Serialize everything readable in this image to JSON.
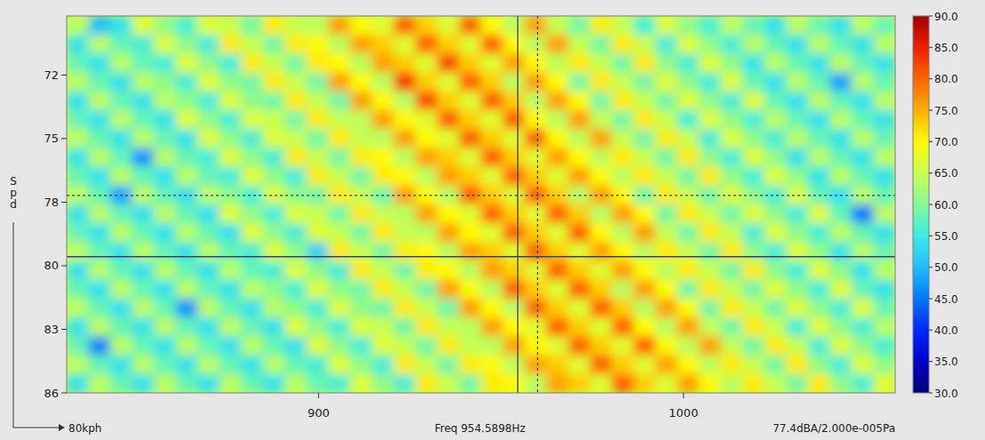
{
  "chart_data": {
    "type": "heatmap",
    "y_label": "Spd",
    "xlim": [
      831,
      1058
    ],
    "xticks": [
      900,
      1000
    ],
    "ylim": [
      69.4,
      86
    ],
    "yticks": [
      72,
      {
        "value": 74.8,
        "label": "75"
      },
      {
        "value": 77.6,
        "label": "78"
      },
      {
        "value": 80.4,
        "label": "80"
      },
      {
        "value": 83.2,
        "label": "83"
      },
      86
    ],
    "grid": false,
    "cells": [
      [
        64,
        50,
        54,
        67,
        61,
        56,
        67,
        65,
        59,
        71,
        65,
        64,
        76,
        70,
        67,
        80,
        73,
        67,
        80,
        70,
        64,
        76,
        65,
        59,
        71,
        65,
        56,
        67,
        61,
        56,
        64,
        58,
        54,
        64,
        58,
        54,
        64,
        58
      ],
      [
        54,
        64,
        58,
        56,
        67,
        61,
        56,
        71,
        65,
        59,
        71,
        70,
        64,
        76,
        73,
        67,
        80,
        73,
        67,
        80,
        70,
        64,
        76,
        65,
        59,
        71,
        65,
        56,
        67,
        61,
        56,
        64,
        58,
        54,
        64,
        58,
        54,
        64
      ],
      [
        58,
        54,
        64,
        58,
        56,
        67,
        61,
        56,
        71,
        65,
        59,
        71,
        70,
        64,
        76,
        73,
        67,
        82,
        73,
        67,
        76,
        70,
        64,
        71,
        65,
        59,
        71,
        61,
        56,
        67,
        61,
        54,
        64,
        58,
        54,
        64,
        58,
        54
      ],
      [
        64,
        58,
        54,
        64,
        61,
        56,
        67,
        61,
        59,
        71,
        65,
        59,
        76,
        70,
        64,
        83,
        73,
        67,
        80,
        73,
        64,
        76,
        70,
        59,
        71,
        65,
        59,
        67,
        61,
        56,
        67,
        58,
        54,
        64,
        58,
        48,
        64,
        58
      ],
      [
        54,
        64,
        58,
        54,
        64,
        61,
        56,
        67,
        61,
        59,
        71,
        65,
        59,
        76,
        70,
        64,
        82,
        73,
        67,
        80,
        73,
        64,
        76,
        70,
        59,
        71,
        65,
        59,
        67,
        61,
        56,
        67,
        58,
        54,
        64,
        58,
        54,
        64
      ],
      [
        58,
        54,
        64,
        58,
        54,
        67,
        61,
        56,
        67,
        65,
        59,
        71,
        65,
        64,
        76,
        70,
        67,
        80,
        73,
        67,
        80,
        70,
        64,
        76,
        65,
        59,
        71,
        65,
        56,
        67,
        61,
        56,
        64,
        58,
        54,
        64,
        58,
        54
      ],
      [
        64,
        58,
        54,
        64,
        58,
        54,
        67,
        61,
        56,
        67,
        65,
        59,
        71,
        65,
        64,
        76,
        70,
        67,
        80,
        73,
        67,
        80,
        70,
        64,
        76,
        65,
        59,
        71,
        65,
        56,
        67,
        61,
        56,
        64,
        58,
        54,
        64,
        58
      ],
      [
        54,
        64,
        58,
        47,
        64,
        58,
        56,
        67,
        61,
        56,
        71,
        65,
        59,
        71,
        70,
        64,
        76,
        73,
        67,
        80,
        73,
        67,
        76,
        70,
        64,
        71,
        65,
        59,
        71,
        61,
        56,
        67,
        61,
        54,
        64,
        58,
        54,
        64
      ],
      [
        58,
        54,
        64,
        58,
        54,
        64,
        58,
        56,
        67,
        61,
        56,
        71,
        65,
        59,
        71,
        70,
        64,
        76,
        73,
        67,
        80,
        73,
        67,
        76,
        70,
        64,
        71,
        65,
        59,
        71,
        61,
        56,
        67,
        61,
        54,
        64,
        58,
        54
      ],
      [
        64,
        58,
        48,
        64,
        58,
        54,
        64,
        61,
        56,
        67,
        61,
        59,
        71,
        65,
        59,
        76,
        70,
        64,
        80,
        73,
        67,
        80,
        73,
        64,
        76,
        70,
        59,
        71,
        65,
        59,
        67,
        61,
        56,
        67,
        58,
        54,
        64,
        58
      ],
      [
        54,
        64,
        58,
        54,
        64,
        58,
        54,
        67,
        61,
        56,
        67,
        65,
        59,
        71,
        65,
        64,
        76,
        70,
        67,
        80,
        73,
        67,
        80,
        73,
        64,
        76,
        70,
        59,
        71,
        65,
        59,
        67,
        61,
        56,
        67,
        58,
        45,
        64
      ],
      [
        58,
        54,
        64,
        58,
        54,
        64,
        58,
        54,
        67,
        61,
        56,
        67,
        65,
        59,
        71,
        65,
        64,
        76,
        70,
        67,
        80,
        73,
        67,
        80,
        70,
        64,
        76,
        65,
        59,
        71,
        65,
        56,
        67,
        61,
        56,
        64,
        58,
        54
      ],
      [
        64,
        58,
        54,
        64,
        58,
        54,
        64,
        58,
        56,
        67,
        61,
        52,
        71,
        65,
        59,
        71,
        70,
        64,
        76,
        73,
        67,
        80,
        73,
        67,
        76,
        70,
        64,
        71,
        65,
        59,
        71,
        61,
        56,
        67,
        61,
        54,
        64,
        58
      ],
      [
        54,
        64,
        58,
        54,
        64,
        58,
        54,
        64,
        58,
        56,
        67,
        61,
        56,
        71,
        65,
        59,
        71,
        70,
        64,
        76,
        73,
        67,
        80,
        73,
        67,
        76,
        70,
        64,
        71,
        65,
        59,
        71,
        61,
        56,
        67,
        61,
        54,
        64
      ],
      [
        58,
        54,
        64,
        58,
        54,
        64,
        58,
        54,
        64,
        61,
        56,
        67,
        61,
        59,
        71,
        65,
        59,
        76,
        70,
        64,
        80,
        73,
        67,
        80,
        73,
        64,
        76,
        70,
        59,
        71,
        65,
        59,
        67,
        61,
        56,
        67,
        58,
        54
      ],
      [
        64,
        58,
        54,
        64,
        58,
        47,
        64,
        58,
        54,
        64,
        61,
        56,
        67,
        61,
        59,
        71,
        65,
        59,
        76,
        70,
        64,
        80,
        73,
        67,
        80,
        73,
        64,
        76,
        70,
        59,
        71,
        65,
        59,
        67,
        61,
        56,
        67,
        58
      ],
      [
        54,
        64,
        58,
        54,
        64,
        58,
        54,
        64,
        58,
        54,
        67,
        61,
        56,
        67,
        65,
        59,
        71,
        65,
        64,
        76,
        70,
        67,
        80,
        73,
        67,
        80,
        70,
        64,
        76,
        65,
        59,
        71,
        65,
        56,
        67,
        61,
        56,
        64
      ],
      [
        58,
        46,
        64,
        58,
        54,
        64,
        58,
        54,
        64,
        58,
        54,
        67,
        61,
        56,
        67,
        65,
        59,
        71,
        65,
        64,
        76,
        70,
        67,
        80,
        73,
        67,
        80,
        70,
        64,
        76,
        65,
        59,
        71,
        65,
        56,
        67,
        61,
        56
      ],
      [
        64,
        58,
        54,
        64,
        58,
        54,
        64,
        58,
        54,
        64,
        58,
        56,
        67,
        61,
        56,
        71,
        65,
        59,
        71,
        70,
        64,
        76,
        73,
        67,
        80,
        73,
        67,
        76,
        70,
        64,
        71,
        65,
        59,
        71,
        61,
        56,
        67,
        61
      ],
      [
        54,
        64,
        58,
        54,
        64,
        58,
        54,
        64,
        58,
        54,
        64,
        58,
        56,
        67,
        61,
        56,
        71,
        65,
        59,
        71,
        70,
        64,
        76,
        73,
        67,
        80,
        73,
        67,
        76,
        70,
        64,
        71,
        65,
        59,
        71,
        61,
        56,
        67
      ]
    ],
    "colorbar": {
      "range": [
        30,
        90
      ],
      "ticks": [
        {
          "value": 30,
          "label": "30.0"
        },
        {
          "value": 35,
          "label": "35.0"
        },
        {
          "value": 40,
          "label": "40.0"
        },
        {
          "value": 45,
          "label": "45.0"
        },
        {
          "value": 50,
          "label": "50.0"
        },
        {
          "value": 55,
          "label": "55.0"
        },
        {
          "value": 60,
          "label": "60.0"
        },
        {
          "value": 65,
          "label": "65.0"
        },
        {
          "value": 70,
          "label": "70.0"
        },
        {
          "value": 75,
          "label": "75.0"
        },
        {
          "value": 80,
          "label": "80.0"
        },
        {
          "value": 85,
          "label": "85.0"
        },
        {
          "value": 90,
          "label": "90.0"
        }
      ]
    },
    "cursor": {
      "x": 954.5898,
      "y": 80
    },
    "reference_cursor": {
      "x": 960,
      "y": 77.3
    },
    "annotations": [
      "80kph",
      "Freq 954.5898Hz",
      "77.4dBA/2.000e-005Pa"
    ]
  }
}
